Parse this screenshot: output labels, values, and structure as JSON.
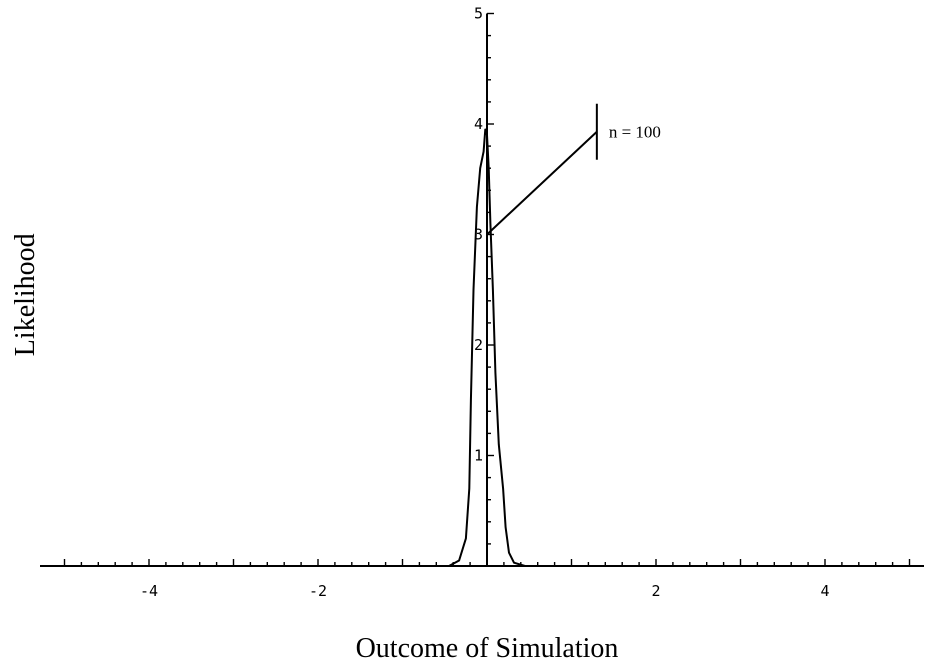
{
  "chart_data": {
    "type": "line",
    "title": "",
    "xlabel": "Outcome of Simulation",
    "ylabel": "Likelihood",
    "xlim": [
      -5.1,
      5.1
    ],
    "ylim": [
      0,
      5.0
    ],
    "x_ticks": [
      -4,
      -2,
      2,
      4
    ],
    "x_tick_labels": [
      "-4",
      "-2",
      "2",
      "4"
    ],
    "y_ticks": [
      1,
      2,
      3,
      4,
      5
    ],
    "y_tick_labels": [
      "1",
      "2",
      "3",
      "4",
      "5"
    ],
    "grid": false,
    "series": [
      {
        "x": [
          -0.65,
          -0.45,
          -0.33,
          -0.25,
          -0.21,
          -0.19,
          -0.16,
          -0.12,
          -0.08,
          -0.04,
          -0.02,
          0.0,
          0.02,
          0.04,
          0.07,
          0.1,
          0.14,
          0.19,
          0.22,
          0.26,
          0.32,
          0.45,
          0.65
        ],
        "y": [
          0.0,
          0.0,
          0.05,
          0.25,
          0.7,
          1.5,
          2.5,
          3.25,
          3.6,
          3.75,
          3.95,
          3.9,
          3.6,
          3.1,
          2.5,
          1.75,
          1.1,
          0.7,
          0.35,
          0.12,
          0.03,
          0.0,
          0.0
        ]
      }
    ],
    "annotations": [
      {
        "text": "n = 100",
        "x": 0.0,
        "y": 3.0,
        "text_x": 1.3,
        "text_y": 3.93
      }
    ]
  }
}
